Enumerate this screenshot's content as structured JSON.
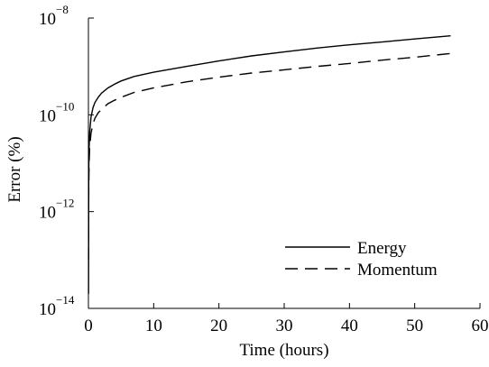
{
  "chart_data": {
    "type": "line",
    "title": "",
    "xlabel": "Time (hours)",
    "ylabel": "Error (%)",
    "xlim": [
      0,
      60
    ],
    "ylim_log10": [
      -14,
      -8
    ],
    "y_scale": "log",
    "grid": false,
    "legend_position": "bottom-right",
    "x_ticks": [
      {
        "value": 0,
        "label": "0"
      },
      {
        "value": 10,
        "label": "10"
      },
      {
        "value": 20,
        "label": "20"
      },
      {
        "value": 30,
        "label": "30"
      },
      {
        "value": 40,
        "label": "40"
      },
      {
        "value": 50,
        "label": "50"
      },
      {
        "value": 60,
        "label": "60"
      }
    ],
    "y_ticks": [
      {
        "value": 1e-14,
        "base": "10",
        "exponent": "−14"
      },
      {
        "value": 1e-12,
        "base": "10",
        "exponent": "−12"
      },
      {
        "value": 1e-10,
        "base": "10",
        "exponent": "−10"
      },
      {
        "value": 1e-08,
        "base": "10",
        "exponent": "−8"
      }
    ],
    "series": [
      {
        "name": "Energy",
        "style": "solid",
        "color": "#000000",
        "x": [
          0.02,
          0.05,
          0.1,
          0.2,
          0.4,
          0.7,
          1,
          1.5,
          2,
          3,
          4,
          5,
          7,
          10,
          15,
          20,
          25,
          30,
          35,
          40,
          45,
          50,
          55.5
        ],
        "y": [
          2e-14,
          6e-12,
          2e-11,
          4.5e-11,
          9e-11,
          1.4e-10,
          1.8e-10,
          2.3e-10,
          2.8e-10,
          3.6e-10,
          4.3e-10,
          5e-10,
          6.2e-10,
          7.6e-10,
          1e-09,
          1.3e-09,
          1.65e-09,
          2e-09,
          2.4e-09,
          2.8e-09,
          3.2e-09,
          3.7e-09,
          4.3e-09
        ]
      },
      {
        "name": "Momentum",
        "style": "dashed",
        "color": "#000000",
        "x": [
          0.02,
          0.05,
          0.1,
          0.2,
          0.4,
          0.7,
          1,
          1.5,
          2,
          3,
          4,
          5,
          7,
          10,
          15,
          20,
          25,
          30,
          35,
          40,
          45,
          50,
          55.5
        ],
        "y": [
          1e-13,
          3e-12,
          1e-11,
          2.2e-11,
          4.2e-11,
          6.5e-11,
          8.5e-11,
          1.1e-10,
          1.3e-10,
          1.7e-10,
          2e-10,
          2.3e-10,
          2.9e-10,
          3.6e-10,
          4.8e-10,
          6e-10,
          7.3e-10,
          8.5e-10,
          1e-09,
          1.15e-09,
          1.35e-09,
          1.55e-09,
          1.85e-09
        ]
      }
    ]
  }
}
